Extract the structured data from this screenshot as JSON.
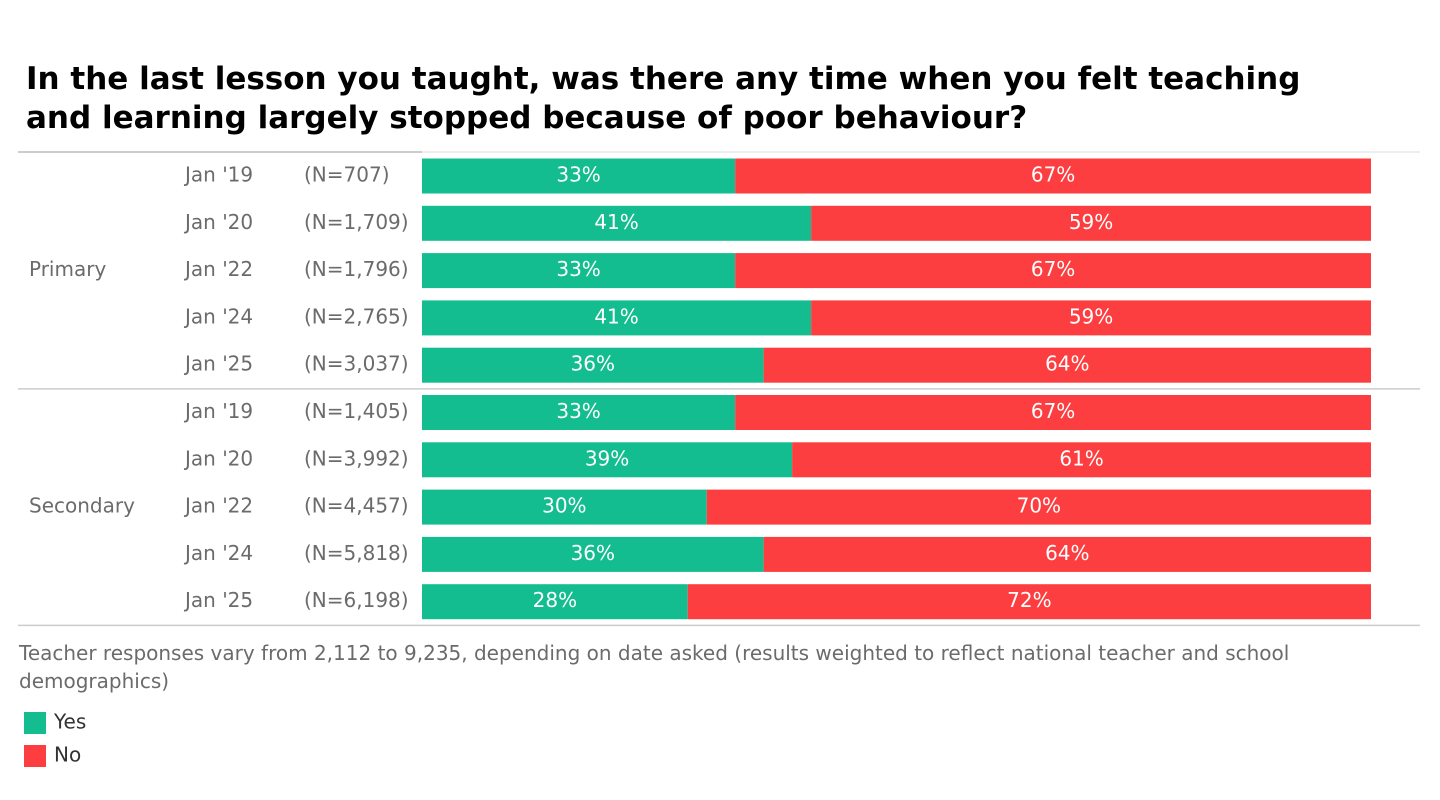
{
  "chart_data": {
    "type": "bar",
    "orientation": "horizontal",
    "stacked": true,
    "title": "In the last lesson you taught, was there any time when you felt teaching and learning largely stopped because of poor behaviour?",
    "note": "Teacher responses vary from 2,112 to 9,235, depending on date asked (results weighted to reflect national teacher and school demographics)",
    "legend": "bottom-left",
    "xlim": [
      0,
      100
    ],
    "groups": [
      "Primary",
      "Primary",
      "Primary",
      "Primary",
      "Primary",
      "Secondary",
      "Secondary",
      "Secondary",
      "Secondary",
      "Secondary"
    ],
    "categories": [
      "Jan '19",
      "Jan '20",
      "Jan '22",
      "Jan '24",
      "Jan '25",
      "Jan '19",
      "Jan '20",
      "Jan '22",
      "Jan '24",
      "Jan '25"
    ],
    "sample_sizes": [
      "(N=707)",
      "(N=1,709)",
      "(N=1,796)",
      "(N=2,765)",
      "(N=3,037)",
      "(N=1,405)",
      "(N=3,992)",
      "(N=4,457)",
      "(N=5,818)",
      "(N=6,198)"
    ],
    "series": [
      {
        "name": "Yes",
        "color": "#13bd8f",
        "values": [
          33,
          41,
          33,
          41,
          36,
          33,
          39,
          30,
          36,
          28
        ],
        "value_labels": [
          "33%",
          "41%",
          "33%",
          "41%",
          "36%",
          "33%",
          "39%",
          "30%",
          "36%",
          "28%"
        ]
      },
      {
        "name": "No",
        "color": "#fd3e40",
        "values": [
          67,
          59,
          67,
          59,
          64,
          67,
          61,
          70,
          64,
          72
        ],
        "value_labels": [
          "67%",
          "59%",
          "67%",
          "59%",
          "64%",
          "67%",
          "61%",
          "70%",
          "64%",
          "72%"
        ]
      }
    ]
  }
}
